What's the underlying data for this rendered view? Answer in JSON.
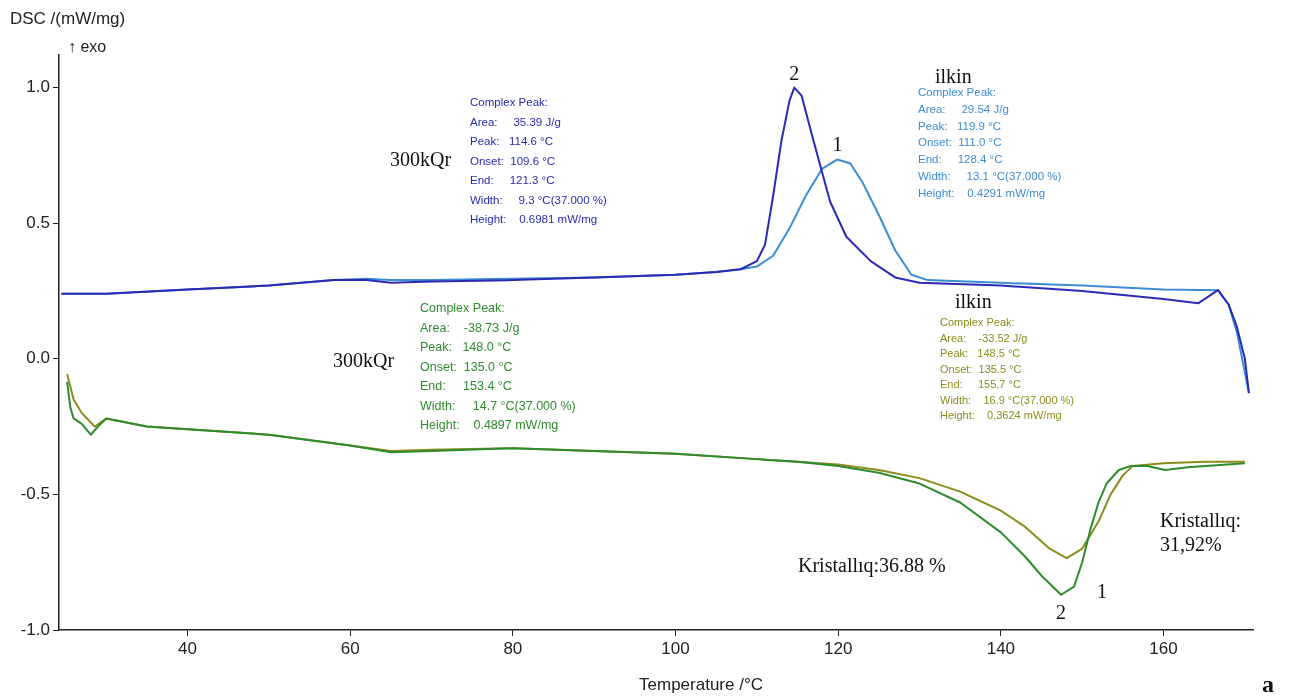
{
  "chart_data": {
    "type": "line",
    "xlabel": "Temperature /°C",
    "ylabel": "DSC /(mW/mg)",
    "xlim": [
      24.2,
      171
    ],
    "ylim": [
      -1.0,
      1.12
    ],
    "xticks": [
      40,
      60,
      80,
      100,
      120,
      140,
      160
    ],
    "yticks": [
      {
        "value": -1,
        "label": "-1.0"
      },
      {
        "value": -0.5,
        "label": "-0.5"
      },
      {
        "value": 0,
        "label": "0.0"
      },
      {
        "value": 0.5,
        "label": "0.5"
      },
      {
        "value": 1,
        "label": "1.0"
      }
    ],
    "grid": false,
    "legend": false,
    "marker": "none",
    "line_style": "solid",
    "series": [
      {
        "color": "#2a2ab4",
        "x": [
          24.5,
          30,
          40,
          50,
          58,
          62,
          65,
          70,
          80,
          90,
          100,
          105,
          108,
          110,
          111,
          112,
          113,
          114,
          114.6,
          115.5,
          117,
          119,
          121,
          124,
          127,
          130,
          140,
          150,
          160,
          164.3,
          166.7,
          168,
          169,
          170,
          170.5
        ],
        "values": [
          0.24,
          0.24,
          0.255,
          0.27,
          0.29,
          0.29,
          0.28,
          0.285,
          0.29,
          0.3,
          0.31,
          0.32,
          0.33,
          0.36,
          0.42,
          0.6,
          0.8,
          0.95,
          1.0,
          0.97,
          0.8,
          0.58,
          0.45,
          0.36,
          0.3,
          0.28,
          0.27,
          0.25,
          0.22,
          0.205,
          0.253,
          0.2,
          0.12,
          0.0,
          -0.127
        ]
      },
      {
        "color": "#3c8cd2",
        "x": [
          24.5,
          30,
          40,
          50,
          58,
          62,
          65,
          70,
          80,
          90,
          100,
          105,
          108,
          110,
          112,
          114,
          116,
          118,
          119.9,
          121.5,
          123,
          125,
          127,
          129,
          131,
          140,
          150,
          160,
          166.7,
          168,
          169,
          170,
          170.5
        ],
        "values": [
          0.24,
          0.24,
          0.255,
          0.27,
          0.29,
          0.295,
          0.29,
          0.29,
          0.295,
          0.3,
          0.31,
          0.32,
          0.33,
          0.34,
          0.38,
          0.48,
          0.6,
          0.7,
          0.735,
          0.72,
          0.65,
          0.53,
          0.4,
          0.31,
          0.29,
          0.28,
          0.27,
          0.255,
          0.253,
          0.2,
          0.1,
          -0.05,
          -0.127
        ]
      },
      {
        "color": "#2e8b2e",
        "x": [
          25.2,
          25.6,
          26,
          27,
          28.1,
          29,
          30,
          35,
          40,
          50,
          60,
          65,
          70,
          80,
          90,
          100,
          110,
          115,
          120,
          125,
          130,
          135,
          140,
          143,
          145,
          147.4,
          149,
          150,
          151,
          152,
          153,
          154.5,
          156,
          158,
          160.2,
          163,
          170
        ],
        "values": [
          -0.085,
          -0.18,
          -0.22,
          -0.24,
          -0.28,
          -0.25,
          -0.22,
          -0.25,
          -0.26,
          -0.28,
          -0.32,
          -0.345,
          -0.34,
          -0.33,
          -0.34,
          -0.35,
          -0.37,
          -0.38,
          -0.395,
          -0.42,
          -0.46,
          -0.53,
          -0.64,
          -0.73,
          -0.8,
          -0.87,
          -0.84,
          -0.75,
          -0.63,
          -0.53,
          -0.46,
          -0.41,
          -0.395,
          -0.395,
          -0.41,
          -0.4,
          -0.385
        ]
      },
      {
        "color": "#8c8c1e",
        "x": [
          25.2,
          26,
          27,
          28.6,
          30,
          35,
          40,
          50,
          60,
          65,
          70,
          80,
          90,
          100,
          110,
          115,
          120,
          125,
          130,
          135,
          140,
          143,
          146,
          148.1,
          150,
          152,
          153.5,
          155,
          156.2,
          160,
          165,
          170
        ],
        "values": [
          -0.056,
          -0.15,
          -0.2,
          -0.25,
          -0.22,
          -0.25,
          -0.26,
          -0.28,
          -0.32,
          -0.34,
          -0.335,
          -0.33,
          -0.34,
          -0.35,
          -0.37,
          -0.38,
          -0.39,
          -0.41,
          -0.44,
          -0.49,
          -0.56,
          -0.62,
          -0.7,
          -0.735,
          -0.7,
          -0.6,
          -0.5,
          -0.43,
          -0.395,
          -0.385,
          -0.38,
          -0.38
        ]
      }
    ],
    "annotations": [
      "↑ exo",
      "Complex Peak:\nArea:     35.39 J/g\nPeak:   114.6 °C\nOnset:  109.6 °C\nEnd:     121.3 °C\nWidth:     9.3 °C(37.000 %)\nHeight:    0.6981 mW/mg",
      "Complex Peak:\nArea:     29.54 J/g\nPeak:   119.9 °C\nOnset:  111.0 °C\nEnd:     128.4 °C\nWidth:     13.1 °C(37.000 %)\nHeight:    0.4291 mW/mg",
      "Complex Peak:\nArea:    -38.73 J/g\nPeak:   148.0 °C\nOnset:  135.0 °C\nEnd:     153.4 °C\nWidth:     14.7 °C(37.000 %)\nHeight:    0.4897 mW/mg",
      "Complex Peak:\nArea:    -33.52 J/g\nPeak:   148.5 °C\nOnset:  135.5 °C\nEnd:     155.7 °C\nWidth:    16.9 °C(37.000 %)\nHeight:    0.3624 mW/mg",
      {
        "text": "2",
        "x": 114.6,
        "y": 1.0
      },
      {
        "text": "1",
        "x": 119.9,
        "y": 0.735
      },
      {
        "text": "2",
        "x": 147.4,
        "y": -0.87
      },
      {
        "text": "1",
        "x": 148.5,
        "y": -0.735
      },
      "Kristallıq:36.88 %",
      "Kristallıq:\n31,92%",
      "a",
      "300kQr",
      "ilkin",
      "300kQr",
      "ilkin"
    ]
  }
}
